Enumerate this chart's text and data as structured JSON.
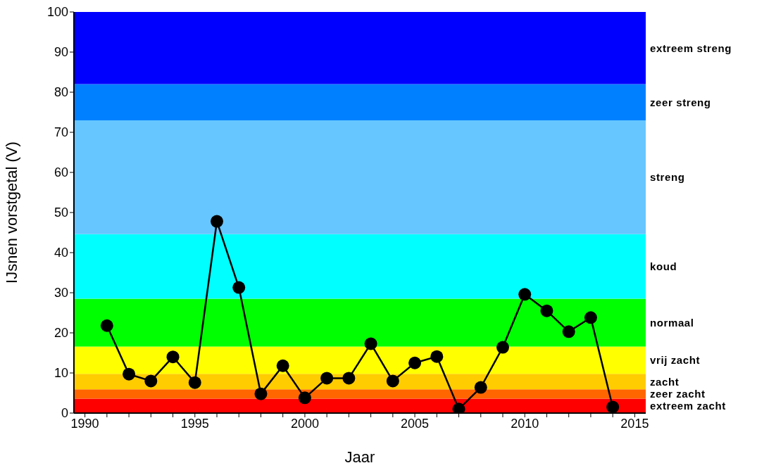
{
  "chart_data": {
    "type": "line",
    "xlabel": "Jaar",
    "ylabel": "IJsnen vorstgetal (V)",
    "x": [
      1991,
      1992,
      1993,
      1994,
      1995,
      1996,
      1997,
      1998,
      1999,
      2000,
      2001,
      2002,
      2003,
      2004,
      2005,
      2006,
      2007,
      2008,
      2009,
      2010,
      2011,
      2012,
      2013,
      2014
    ],
    "series": [
      {
        "color": "#000000",
        "values": [
          21.8,
          9.7,
          8.0,
          14.0,
          7.6,
          47.8,
          31.3,
          4.8,
          11.8,
          3.8,
          8.7,
          8.7,
          17.3,
          8.0,
          12.5,
          14.1,
          1.0,
          6.4,
          16.4,
          29.6,
          25.5,
          20.3,
          23.8,
          1.5
        ]
      }
    ],
    "xlim": [
      1989.5,
      2015.5
    ],
    "xticks": [
      1990,
      {
        "value": 1991,
        "label": null
      },
      {
        "value": 1992,
        "label": null
      },
      {
        "value": 1993,
        "label": null
      },
      {
        "value": 1994,
        "label": null
      },
      1995,
      {
        "value": 1996,
        "label": null
      },
      {
        "value": 1997,
        "label": null
      },
      {
        "value": 1998,
        "label": null
      },
      {
        "value": 1999,
        "label": null
      },
      2000,
      {
        "value": 2001,
        "label": null
      },
      {
        "value": 2002,
        "label": null
      },
      {
        "value": 2003,
        "label": null
      },
      {
        "value": 2004,
        "label": null
      },
      2005,
      {
        "value": 2006,
        "label": null
      },
      {
        "value": 2007,
        "label": null
      },
      {
        "value": 2008,
        "label": null
      },
      {
        "value": 2009,
        "label": null
      },
      2010,
      {
        "value": 2011,
        "label": null
      },
      {
        "value": 2012,
        "label": null
      },
      {
        "value": 2013,
        "label": null
      },
      {
        "value": 2014,
        "label": null
      },
      2015
    ],
    "ylim": [
      0,
      100
    ],
    "yticks": [
      0,
      10,
      20,
      30,
      40,
      50,
      60,
      70,
      80,
      90,
      100
    ],
    "bands": [
      {
        "axis": "y",
        "from": 0,
        "to": 3.6,
        "label": "extreem zacht",
        "color": "#ff0000"
      },
      {
        "axis": "y",
        "from": 3.6,
        "to": 5.9,
        "label": "zeer zacht",
        "color": "#ff6600"
      },
      {
        "axis": "y",
        "from": 5.9,
        "to": 9.8,
        "label": "zacht",
        "color": "#ffcc00"
      },
      {
        "axis": "y",
        "from": 9.8,
        "to": 16.6,
        "label": "vrij zacht",
        "color": "#ffff00"
      },
      {
        "axis": "y",
        "from": 16.6,
        "to": 28.5,
        "label": "normaal",
        "color": "#00ff00"
      },
      {
        "axis": "y",
        "from": 28.5,
        "to": 44.6,
        "label": "koud",
        "color": "#00ffff"
      },
      {
        "axis": "y",
        "from": 44.6,
        "to": 73,
        "label": "streng",
        "color": "#66c6ff"
      },
      {
        "axis": "y",
        "from": 73,
        "to": 82,
        "label": "zeer streng",
        "color": "#0080ff"
      },
      {
        "axis": "y",
        "from": 82,
        "to": 100,
        "label": "extreem streng",
        "color": "#0000ff"
      }
    ],
    "grid": false,
    "marker": "circle",
    "line_style": "solid"
  }
}
